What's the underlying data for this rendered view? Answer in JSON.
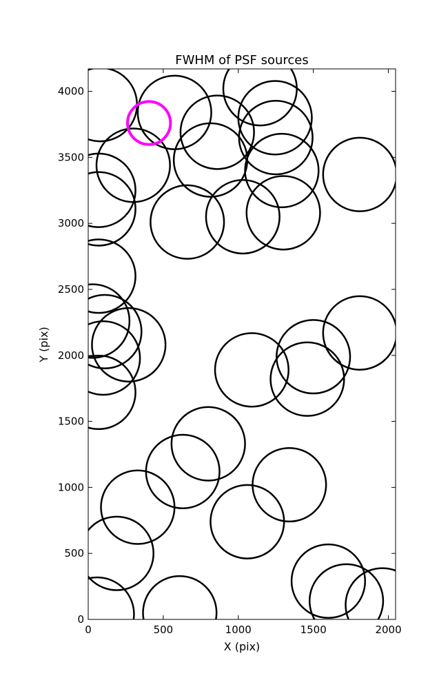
{
  "chart_data": {
    "type": "scatter",
    "title": "FWHM of PSF sources",
    "xlabel": "X (pix)",
    "ylabel": "Y (pix)",
    "xlim": [
      0,
      2048
    ],
    "ylim": [
      0,
      4170
    ],
    "xticks": [
      0,
      500,
      1000,
      1500,
      2000
    ],
    "yticks": [
      0,
      500,
      1000,
      1500,
      2000,
      2500,
      3000,
      3500,
      4000
    ],
    "grid": false,
    "marker": "circle",
    "colors": {
      "default": "#000000",
      "highlight": "#ff00ff"
    },
    "series": [
      {
        "color": "#000000",
        "points": [
          {
            "x": 80,
            "y": 3900,
            "fwhm_r": 245
          },
          {
            "x": 575,
            "y": 3840,
            "fwhm_r": 245
          },
          {
            "x": 860,
            "y": 3690,
            "fwhm_r": 245
          },
          {
            "x": 1145,
            "y": 4020,
            "fwhm_r": 245
          },
          {
            "x": 1245,
            "y": 3800,
            "fwhm_r": 245
          },
          {
            "x": 1250,
            "y": 3650,
            "fwhm_r": 245
          },
          {
            "x": 1290,
            "y": 3400,
            "fwhm_r": 245
          },
          {
            "x": 815,
            "y": 3480,
            "fwhm_r": 245
          },
          {
            "x": 300,
            "y": 3440,
            "fwhm_r": 245
          },
          {
            "x": 70,
            "y": 3250,
            "fwhm_r": 245
          },
          {
            "x": 70,
            "y": 3110,
            "fwhm_r": 245
          },
          {
            "x": 660,
            "y": 3010,
            "fwhm_r": 245
          },
          {
            "x": 1030,
            "y": 3050,
            "fwhm_r": 245
          },
          {
            "x": 1300,
            "y": 3080,
            "fwhm_r": 245
          },
          {
            "x": 1810,
            "y": 3370,
            "fwhm_r": 245
          },
          {
            "x": 70,
            "y": 2600,
            "fwhm_r": 245
          },
          {
            "x": 30,
            "y": 2260,
            "fwhm_r": 245
          },
          {
            "x": 110,
            "y": 2180,
            "fwhm_r": 245
          },
          {
            "x": 270,
            "y": 2080,
            "fwhm_r": 245
          },
          {
            "x": 100,
            "y": 1980,
            "fwhm_r": 245
          },
          {
            "x": 70,
            "y": 1720,
            "fwhm_r": 245
          },
          {
            "x": 1090,
            "y": 1890,
            "fwhm_r": 245
          },
          {
            "x": 1500,
            "y": 1990,
            "fwhm_r": 245
          },
          {
            "x": 1460,
            "y": 1820,
            "fwhm_r": 245
          },
          {
            "x": 1810,
            "y": 2170,
            "fwhm_r": 245
          },
          {
            "x": 800,
            "y": 1330,
            "fwhm_r": 245
          },
          {
            "x": 630,
            "y": 1120,
            "fwhm_r": 245
          },
          {
            "x": 330,
            "y": 850,
            "fwhm_r": 245
          },
          {
            "x": 1340,
            "y": 1020,
            "fwhm_r": 245
          },
          {
            "x": 1060,
            "y": 740,
            "fwhm_r": 245
          },
          {
            "x": 190,
            "y": 500,
            "fwhm_r": 245
          },
          {
            "x": 60,
            "y": 40,
            "fwhm_r": 245
          },
          {
            "x": 610,
            "y": 50,
            "fwhm_r": 245
          },
          {
            "x": 1600,
            "y": 290,
            "fwhm_r": 245
          },
          {
            "x": 1720,
            "y": 140,
            "fwhm_r": 245
          },
          {
            "x": 1960,
            "y": 110,
            "fwhm_r": 245
          }
        ]
      },
      {
        "color": "#ff00ff",
        "points": [
          {
            "x": 405,
            "y": 3760,
            "fwhm_r": 143
          }
        ]
      }
    ]
  }
}
